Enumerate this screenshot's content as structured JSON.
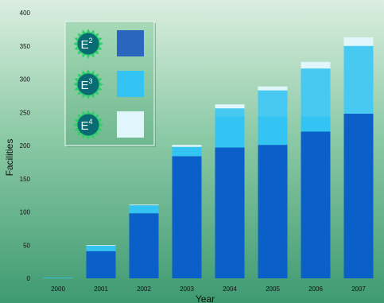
{
  "chart_data": {
    "type": "bar",
    "stacked": true,
    "title": "",
    "xlabel": "Year",
    "ylabel": "Facilities",
    "ylim": [
      0,
      400
    ],
    "yticks": [
      0,
      50,
      100,
      150,
      200,
      250,
      300,
      350,
      400
    ],
    "categories": [
      "2000",
      "2001",
      "2002",
      "2003",
      "2004",
      "2005",
      "2006",
      "2007"
    ],
    "series": [
      {
        "name": "E2",
        "color": "#0a5fc8",
        "values": [
          0,
          41,
          98,
          184,
          197,
          201,
          221,
          248
        ]
      },
      {
        "name": "E3",
        "color": "#33c4f4",
        "values": [
          1,
          8,
          12,
          14,
          59,
          82,
          95,
          102
        ]
      },
      {
        "name": "E4",
        "color": "#dff6fb",
        "values": [
          0,
          1,
          1,
          3,
          6,
          6,
          10,
          13
        ]
      }
    ],
    "band_shading": {
      "note": "lighter cyan band on E3 in 2004-2007 above y=244",
      "above_value": 244
    },
    "legend": {
      "placement": "top-left",
      "items": [
        {
          "base": "E",
          "exp": "2",
          "swatch": "#2a66bd"
        },
        {
          "base": "E",
          "exp": "3",
          "swatch": "#33c4f4"
        },
        {
          "base": "E",
          "exp": "4",
          "swatch": "#dff6fb"
        }
      ]
    },
    "grid": false,
    "background": {
      "top": "#dbeee0",
      "mid": "#8ccaa6",
      "bottom": "#3f9a71"
    }
  }
}
